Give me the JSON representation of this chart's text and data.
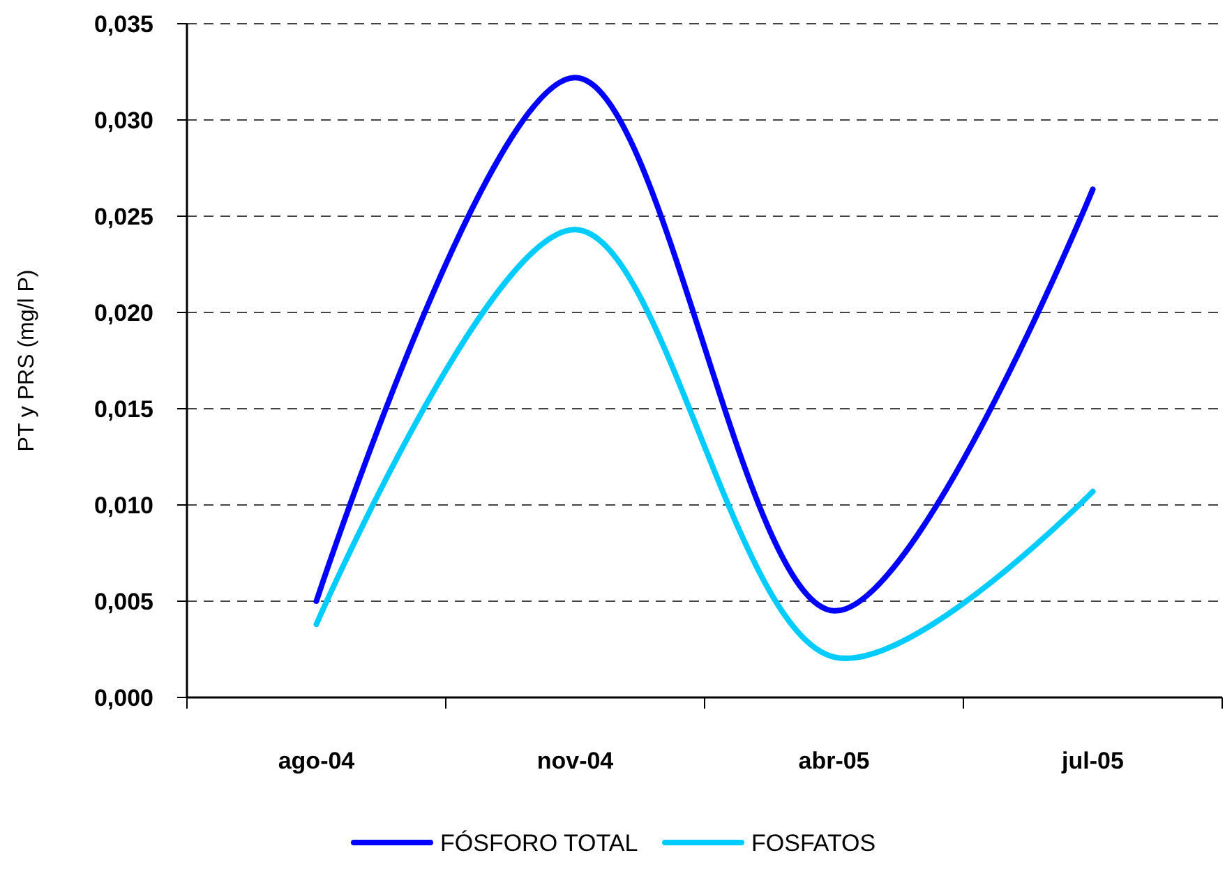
{
  "chart_data": {
    "type": "line",
    "ylabel": "PT y PRS (mg/l P)",
    "categories": [
      "ago-04",
      "nov-04",
      "abr-05",
      "jul-05"
    ],
    "series": [
      {
        "name": "FÓSFORO TOTAL",
        "color": "#0000ff",
        "values": [
          0.005,
          0.0322,
          0.0045,
          0.0264
        ]
      },
      {
        "name": "FOSFATOS",
        "color": "#00ccff",
        "values": [
          0.0038,
          0.0243,
          0.0021,
          0.0107
        ]
      }
    ],
    "ylim": [
      0,
      0.035
    ],
    "yticks": [
      {
        "value": 0,
        "label": "0,000"
      },
      {
        "value": 0.005,
        "label": "0,005"
      },
      {
        "value": 0.01,
        "label": "0,010"
      },
      {
        "value": 0.015,
        "label": "0,015"
      },
      {
        "value": 0.02,
        "label": "0,020"
      },
      {
        "value": 0.025,
        "label": "0,025"
      },
      {
        "value": 0.03,
        "label": "0,030"
      },
      {
        "value": 0.035,
        "label": "0,035"
      }
    ],
    "grid": "y",
    "legend": "bottom",
    "marker": "none",
    "line_style": "solid"
  }
}
